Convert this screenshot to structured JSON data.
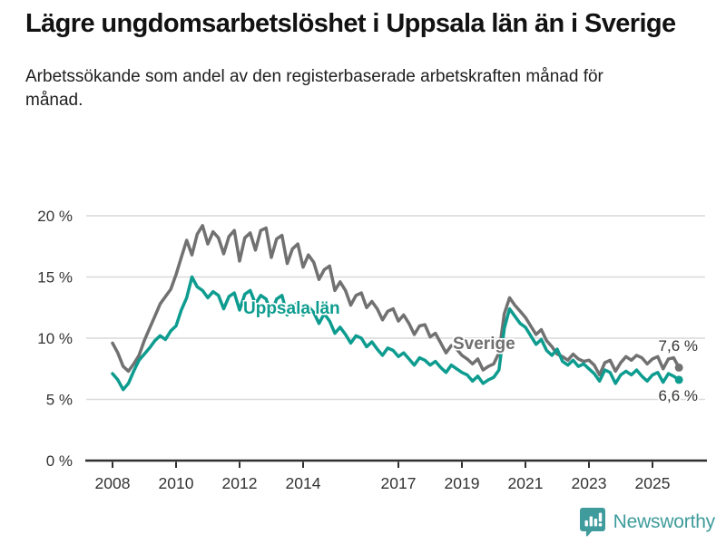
{
  "header": {
    "title": "Lägre ungdomsarbetslöshet i Uppsala län än i Sverige",
    "subtitle": "Arbetssökande som andel av den registerbaserade arbetskraften månad för månad."
  },
  "chart_data": {
    "type": "line",
    "unit": "%",
    "x_start_year": 2008,
    "x_step_months": 2,
    "x_end": "2025",
    "x_tick_years": [
      2008,
      2010,
      2012,
      2014,
      2017,
      2019,
      2021,
      2023,
      2025
    ],
    "y_ticks": [
      0,
      5,
      10,
      15,
      20
    ],
    "y_tick_suffix": " %",
    "ylim": [
      0,
      20
    ],
    "grid": true,
    "legend": "inline-labels",
    "series": [
      {
        "name": "Sverige",
        "color": "#717171",
        "end_label": "7,6 %",
        "end_value": 7.6,
        "values": [
          9.6,
          8.8,
          7.7,
          7.3,
          7.9,
          8.6,
          9.8,
          10.8,
          11.8,
          12.8,
          13.4,
          14.0,
          15.2,
          16.6,
          18.0,
          16.8,
          18.5,
          19.2,
          17.7,
          18.7,
          18.2,
          16.9,
          18.3,
          18.8,
          16.3,
          18.2,
          18.6,
          17.2,
          18.8,
          19.0,
          16.6,
          18.1,
          18.4,
          16.1,
          17.3,
          17.7,
          15.8,
          16.8,
          16.2,
          14.8,
          15.6,
          15.9,
          13.9,
          14.6,
          13.9,
          12.7,
          13.5,
          13.7,
          12.5,
          13.0,
          12.4,
          11.5,
          12.2,
          12.4,
          11.4,
          11.9,
          11.2,
          10.3,
          11.0,
          11.1,
          10.1,
          10.4,
          9.6,
          8.8,
          9.4,
          9.1,
          8.6,
          8.3,
          7.9,
          8.3,
          7.4,
          7.7,
          7.9,
          8.8,
          12.0,
          13.3,
          12.7,
          12.2,
          11.7,
          11.0,
          10.3,
          10.7,
          9.8,
          9.3,
          8.7,
          8.5,
          8.2,
          8.7,
          8.3,
          8.1,
          8.2,
          7.8,
          7.0,
          8.0,
          8.2,
          7.3,
          8.0,
          8.5,
          8.2,
          8.6,
          8.4,
          7.9,
          8.3,
          8.5,
          7.5,
          8.3,
          8.4,
          7.6
        ]
      },
      {
        "name": "Uppsala län",
        "color": "#0d9c8f",
        "end_label": "6,6 %",
        "end_value": 6.6,
        "values": [
          7.1,
          6.6,
          5.8,
          6.3,
          7.3,
          8.2,
          8.7,
          9.2,
          9.8,
          10.2,
          9.9,
          10.6,
          11.0,
          12.3,
          13.3,
          15.0,
          14.2,
          13.9,
          13.3,
          13.8,
          13.5,
          12.4,
          13.4,
          13.7,
          12.3,
          13.6,
          13.9,
          12.8,
          13.5,
          13.2,
          12.0,
          13.2,
          13.5,
          11.9,
          12.6,
          12.9,
          11.9,
          12.6,
          12.1,
          11.2,
          12.0,
          11.4,
          10.4,
          10.9,
          10.3,
          9.6,
          10.2,
          10.0,
          9.3,
          9.7,
          9.1,
          8.6,
          9.2,
          9.0,
          8.5,
          8.8,
          8.3,
          7.8,
          8.4,
          8.2,
          7.8,
          8.1,
          7.6,
          7.2,
          7.8,
          7.5,
          7.2,
          7.0,
          6.5,
          6.9,
          6.3,
          6.6,
          6.8,
          7.4,
          10.8,
          12.4,
          11.8,
          11.2,
          10.9,
          10.2,
          9.5,
          9.9,
          9.0,
          8.6,
          9.1,
          8.1,
          7.8,
          8.2,
          7.7,
          7.9,
          7.5,
          7.1,
          6.5,
          7.4,
          7.2,
          6.3,
          7.0,
          7.3,
          7.0,
          7.4,
          6.9,
          6.5,
          7.0,
          7.2,
          6.4,
          7.1,
          6.9,
          6.6
        ]
      }
    ]
  },
  "footer": {
    "brand": "Newsworthy",
    "brand_color": "#3f9b9c"
  }
}
